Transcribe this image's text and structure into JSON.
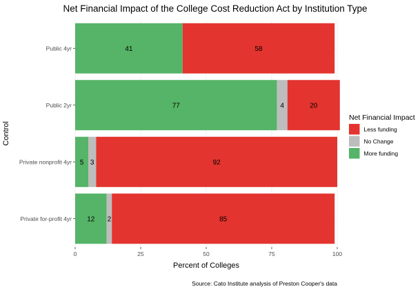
{
  "chart_data": {
    "type": "bar",
    "orientation": "horizontal",
    "stacked": true,
    "title": "Net Financial Impact of the College Cost Reduction Act by Institution Type",
    "xlabel": "Percent of Colleges",
    "ylabel": "Control",
    "xlim": [
      0,
      100
    ],
    "xticks": [
      0,
      25,
      50,
      75,
      100
    ],
    "grid": true,
    "categories": [
      "Public 4yr",
      "Public 2yr",
      "Private nonprofit 4yr",
      "Private for-profit 4yr"
    ],
    "series": [
      {
        "name": "More funding",
        "color": "#55B467",
        "values": [
          41,
          77,
          5,
          12
        ],
        "labels": [
          "41",
          "77",
          "5",
          "12"
        ]
      },
      {
        "name": "No Change",
        "color": "#BDBDBD",
        "values": [
          0,
          4,
          3,
          2
        ],
        "labels": [
          "",
          "4",
          "3",
          "2"
        ]
      },
      {
        "name": "Less funding",
        "color": "#E3342F",
        "values": [
          58,
          20,
          92,
          85
        ],
        "labels": [
          "58",
          "20",
          "92",
          "85"
        ]
      }
    ],
    "legend": {
      "title": "Net Financial Impact",
      "position": "right",
      "order": [
        "Less funding",
        "No Change",
        "More funding"
      ]
    },
    "caption": "Source: Cato Institute analysis of Preston Cooper's data"
  }
}
